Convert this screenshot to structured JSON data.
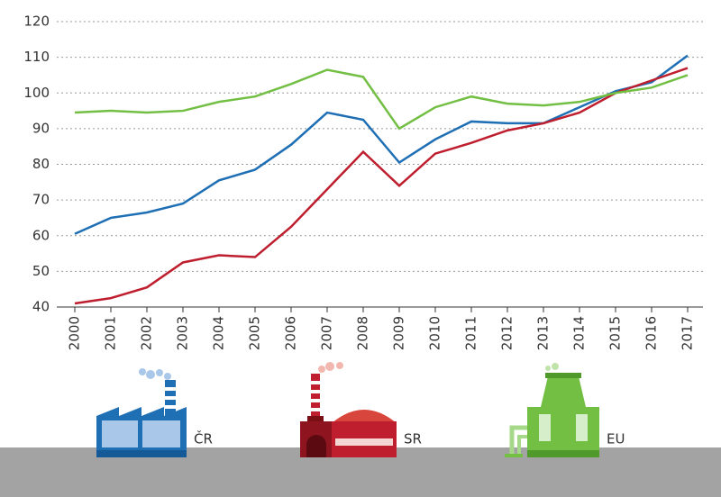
{
  "chart_data": {
    "type": "line",
    "categories": [
      "2000",
      "2001",
      "2002",
      "2003",
      "2004",
      "2005",
      "2006",
      "2007",
      "2008",
      "2009",
      "2010",
      "2011",
      "2012",
      "2013",
      "2014",
      "2015",
      "2016",
      "2017"
    ],
    "series": [
      {
        "name": "ČR",
        "color": "#1f6fb5",
        "values": [
          60.5,
          65,
          66.5,
          69,
          75.5,
          78.5,
          85.5,
          94.5,
          92.5,
          80.5,
          87,
          92,
          91.5,
          91.5,
          96,
          100.5,
          103,
          110.5
        ]
      },
      {
        "name": "SR",
        "color": "#be1e2d",
        "values": [
          41,
          42.5,
          45.5,
          52.5,
          54.5,
          54,
          62.5,
          73,
          83.5,
          74,
          83,
          86,
          89.5,
          91.5,
          94.5,
          100,
          103.5,
          107
        ]
      },
      {
        "name": "EU",
        "color": "#72bf44",
        "values": [
          94.5,
          95,
          94.5,
          95,
          97.5,
          99,
          102.5,
          106.5,
          104.5,
          90,
          96,
          99,
          97,
          96.5,
          97.5,
          100,
          101.5,
          105
        ]
      }
    ],
    "ylim": [
      40,
      120
    ],
    "yticks": [
      40,
      50,
      60,
      70,
      80,
      90,
      100,
      110,
      120
    ],
    "grid": true
  }
}
